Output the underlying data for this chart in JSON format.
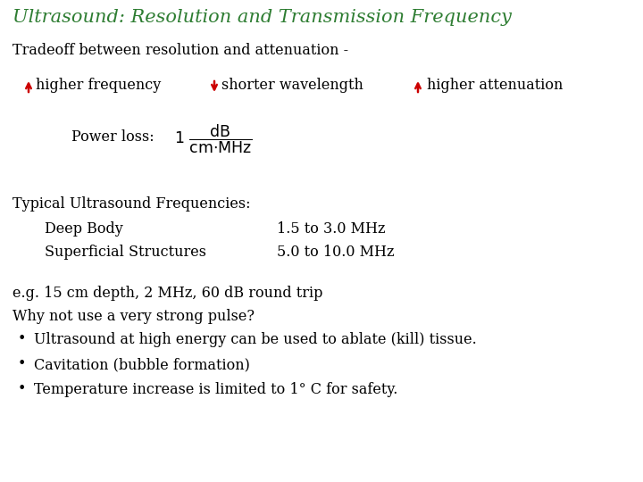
{
  "title": "Ultrasound: Resolution and Transmission Frequency",
  "title_color": "#2E7D32",
  "title_fontsize": 15,
  "bg_color": "#FFFFFF",
  "line1": "Tradeoff between resolution and attenuation -",
  "label1": "higher frequency",
  "label2": "shorter wavelength",
  "label3": "higher attenuation",
  "arrow_color": "#CC0000",
  "power_loss_label": "Power loss:",
  "typical_header": "Typical Ultrasound Frequencies:",
  "deep_body": "Deep Body",
  "deep_body_freq": "1.5 to 3.0 MHz",
  "superficial": "Superficial Structures",
  "superficial_freq": "5.0 to 10.0 MHz",
  "eg_line": "e.g. 15 cm depth, 2 MHz, 60 dB round trip",
  "why_line": "Why not use a very strong pulse?",
  "bullet1": "Ultrasound at high energy can be used to ablate (kill) tissue.",
  "bullet2": "Cavitation (bubble formation)",
  "bullet3": "Temperature increase is limited to 1° C for safety.",
  "text_color": "#000000",
  "body_fontsize": 11.5,
  "arrow_up_char": "↑",
  "arrow_down_char": "↓"
}
